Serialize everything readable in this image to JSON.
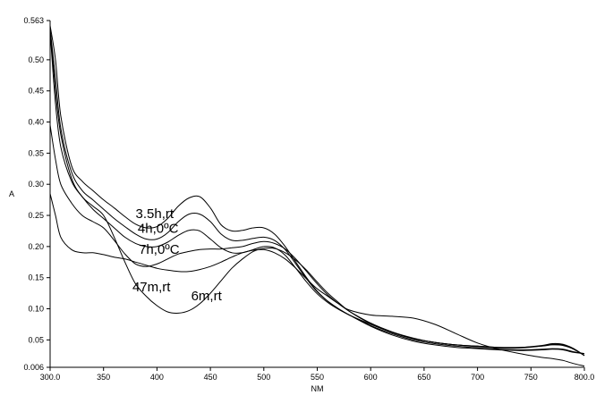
{
  "chart_data": {
    "type": "line",
    "title": "",
    "xlabel": "NM",
    "ylabel": "A",
    "xlim": [
      300.0,
      800.0
    ],
    "ylim": [
      0.006,
      0.563
    ],
    "x_ticks": [
      300.0,
      350,
      400,
      450,
      500,
      550,
      600,
      650,
      700,
      750,
      800.0
    ],
    "x_tick_labels": [
      "300.0",
      "350",
      "400",
      "450",
      "500",
      "550",
      "600",
      "650",
      "700",
      "750",
      "800.0"
    ],
    "y_ticks": [
      0.006,
      0.05,
      0.1,
      0.15,
      0.2,
      0.25,
      0.3,
      0.35,
      0.4,
      0.45,
      0.5,
      0.563
    ],
    "y_tick_labels": [
      "0.006",
      "0.05",
      "0.10",
      "0.15",
      "0.20",
      "0.25",
      "0.30",
      "0.35",
      "0.40",
      "0.45",
      "0.50",
      "0.563"
    ],
    "grid": false,
    "annotations": [
      {
        "text": "3.5h,rt",
        "x": 380,
        "y": 0.246
      },
      {
        "text": "4h,0ºC",
        "x": 382,
        "y": 0.222
      },
      {
        "text": "7h,0ºC",
        "x": 383,
        "y": 0.188
      },
      {
        "text": "47m,rt",
        "x": 377,
        "y": 0.128
      },
      {
        "text": "6m,rt",
        "x": 432,
        "y": 0.114
      }
    ],
    "series": [
      {
        "x": [
          300,
          305,
          310,
          320,
          330,
          340,
          350,
          360,
          370,
          380,
          390,
          400,
          410,
          420,
          430,
          440,
          450,
          460,
          470,
          480,
          490,
          500,
          510,
          520,
          530,
          540,
          550,
          560,
          570,
          580,
          600,
          620,
          640,
          660,
          680,
          700,
          720,
          740,
          760,
          770,
          780,
          790,
          800
        ],
        "y": [
          0.555,
          0.5,
          0.41,
          0.33,
          0.305,
          0.29,
          0.275,
          0.262,
          0.248,
          0.236,
          0.23,
          0.232,
          0.245,
          0.265,
          0.278,
          0.28,
          0.262,
          0.235,
          0.225,
          0.226,
          0.23,
          0.23,
          0.22,
          0.2,
          0.175,
          0.15,
          0.128,
          0.112,
          0.1,
          0.09,
          0.072,
          0.058,
          0.048,
          0.042,
          0.038,
          0.036,
          0.034,
          0.033,
          0.034,
          0.035,
          0.034,
          0.03,
          0.028
        ]
      },
      {
        "x": [
          300,
          305,
          310,
          320,
          330,
          340,
          350,
          360,
          370,
          380,
          390,
          400,
          410,
          420,
          430,
          440,
          450,
          460,
          470,
          480,
          490,
          500,
          510,
          520,
          530,
          540,
          550,
          560,
          570,
          580,
          600,
          620,
          640,
          660,
          680,
          700,
          720,
          740,
          760,
          770,
          780,
          790,
          800
        ],
        "y": [
          0.55,
          0.47,
          0.39,
          0.32,
          0.29,
          0.275,
          0.26,
          0.245,
          0.232,
          0.22,
          0.212,
          0.212,
          0.222,
          0.24,
          0.252,
          0.252,
          0.24,
          0.22,
          0.21,
          0.21,
          0.213,
          0.215,
          0.21,
          0.195,
          0.172,
          0.148,
          0.127,
          0.112,
          0.1,
          0.09,
          0.073,
          0.06,
          0.05,
          0.044,
          0.04,
          0.037,
          0.035,
          0.034,
          0.035,
          0.036,
          0.035,
          0.031,
          0.028
        ]
      },
      {
        "x": [
          300,
          305,
          310,
          320,
          330,
          340,
          350,
          360,
          370,
          380,
          390,
          400,
          410,
          420,
          430,
          440,
          450,
          460,
          470,
          480,
          490,
          500,
          510,
          520,
          530,
          540,
          550,
          560,
          570,
          580,
          600,
          620,
          640,
          660,
          680,
          700,
          720,
          740,
          760,
          770,
          780,
          790,
          800
        ],
        "y": [
          0.545,
          0.43,
          0.36,
          0.305,
          0.28,
          0.26,
          0.245,
          0.23,
          0.215,
          0.205,
          0.2,
          0.2,
          0.207,
          0.218,
          0.226,
          0.225,
          0.212,
          0.198,
          0.19,
          0.19,
          0.195,
          0.2,
          0.198,
          0.186,
          0.165,
          0.143,
          0.124,
          0.11,
          0.099,
          0.09,
          0.075,
          0.062,
          0.052,
          0.046,
          0.042,
          0.039,
          0.037,
          0.037,
          0.04,
          0.043,
          0.042,
          0.035,
          0.025
        ]
      },
      {
        "x": [
          300,
          305,
          310,
          320,
          330,
          340,
          350,
          360,
          370,
          380,
          390,
          400,
          410,
          420,
          430,
          440,
          450,
          460,
          470,
          480,
          490,
          500,
          510,
          520,
          530,
          540,
          550,
          560,
          570,
          580,
          600,
          620,
          640,
          660,
          680,
          700,
          720,
          740,
          760,
          770,
          780,
          790,
          800
        ],
        "y": [
          0.395,
          0.34,
          0.3,
          0.27,
          0.25,
          0.24,
          0.23,
          0.21,
          0.188,
          0.172,
          0.168,
          0.172,
          0.18,
          0.188,
          0.192,
          0.195,
          0.196,
          0.196,
          0.198,
          0.2,
          0.205,
          0.208,
          0.205,
          0.196,
          0.18,
          0.16,
          0.14,
          0.122,
          0.108,
          0.096,
          0.077,
          0.063,
          0.053,
          0.046,
          0.042,
          0.04,
          0.038,
          0.038,
          0.041,
          0.044,
          0.043,
          0.036,
          0.025
        ]
      },
      {
        "x": [
          300,
          305,
          310,
          320,
          330,
          340,
          350,
          360,
          370,
          380,
          390,
          400,
          410,
          420,
          430,
          440,
          450,
          460,
          470,
          480,
          490,
          500,
          510,
          520,
          530,
          540,
          550,
          560,
          570,
          580,
          600,
          620,
          640,
          660,
          680,
          700,
          720,
          740,
          760,
          770,
          780,
          790,
          800
        ],
        "y": [
          0.55,
          0.45,
          0.38,
          0.31,
          0.28,
          0.265,
          0.25,
          0.215,
          0.175,
          0.14,
          0.12,
          0.105,
          0.095,
          0.093,
          0.097,
          0.108,
          0.125,
          0.145,
          0.165,
          0.18,
          0.192,
          0.197,
          0.197,
          0.19,
          0.178,
          0.162,
          0.143,
          0.125,
          0.11,
          0.096,
          0.076,
          0.062,
          0.052,
          0.046,
          0.042,
          0.04,
          0.038,
          0.038,
          0.04,
          0.042,
          0.041,
          0.035,
          0.025
        ]
      },
      {
        "x": [
          300,
          305,
          310,
          320,
          330,
          340,
          350,
          360,
          370,
          380,
          390,
          400,
          410,
          420,
          430,
          440,
          450,
          460,
          470,
          480,
          490,
          500,
          510,
          520,
          530,
          540,
          550,
          560,
          570,
          580,
          600,
          620,
          640,
          660,
          680,
          700,
          720,
          740,
          760,
          770,
          780,
          790,
          800
        ],
        "y": [
          0.285,
          0.25,
          0.215,
          0.195,
          0.19,
          0.19,
          0.187,
          0.183,
          0.18,
          0.175,
          0.17,
          0.165,
          0.162,
          0.16,
          0.16,
          0.163,
          0.168,
          0.175,
          0.183,
          0.19,
          0.194,
          0.195,
          0.19,
          0.18,
          0.165,
          0.148,
          0.132,
          0.12,
          0.108,
          0.098,
          0.09,
          0.088,
          0.085,
          0.075,
          0.06,
          0.045,
          0.035,
          0.028,
          0.022,
          0.02,
          0.017,
          0.012,
          0.008
        ]
      }
    ]
  }
}
